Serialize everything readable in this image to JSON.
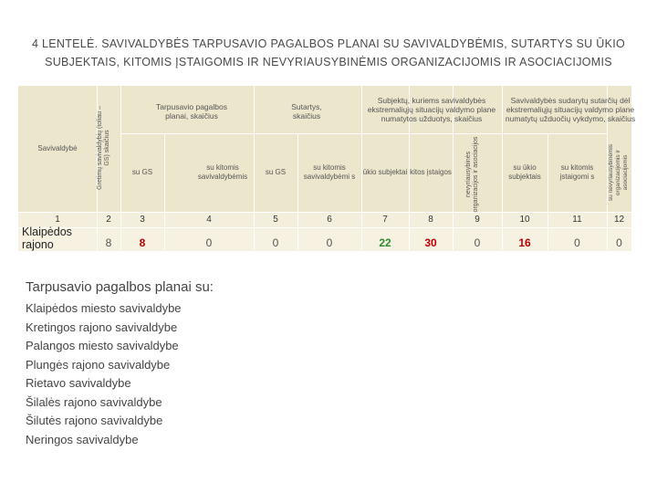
{
  "title_line1": "4 LENTELĖ. SAVIVALDYBĖS TARPUSAVIO PAGALBOS PLANAI SU SAVIVALDYBĖMIS, SUTARTYS SU ŪKIO",
  "title_line2": "SUBJEKTAIS, KITOMIS ĮSTAIGOMIS IR NEVYRIAUSYBINĖMIS ORGANIZACIJOMIS IR ASOCIACIJOMIS",
  "table": {
    "col_savivaldybe": "Savivaldybė",
    "col_gretimu": "Gretimų savivaldybių (toliau – GS) skaičius",
    "grp_tarpusavio": "Tarpusavio pagalbos planai, skaičius",
    "grp_sutartys": "Sutartys, skaičius",
    "grp_subjektu": "Subjektų, kuriems savivaldybės ekstremaliųjų situacijų valdymo plane numatytos užduotys, skaičius",
    "grp_savivaldybes_sutarciu": "Savivaldybės sudarytų sutarčių dėl ekstremaliųjų situacijų valdymo plane numatytų užduočių vykdymo, skaičius",
    "sub_su_gs_1": "su GS",
    "sub_su_kitomis_1": "su kitomis savivaldybėmis",
    "sub_su_gs_2": "su GS",
    "sub_su_kitomis_2": "su kitomis savivaldybėmi s",
    "sub_ukio": "ūkio subjektai",
    "sub_kitos": "kitos įstaigos",
    "sub_nevyr": "nevyriausybinės organizacijos ir asociacijos",
    "sub_su_ukio": "su ūkio subjektais",
    "sub_su_kitomis_istaigom": "su kitomis įstaigomi s",
    "sub_su_nevyr": "su nevyriausybinėmis organizacijomis ir asociacijomis",
    "col_numbers": [
      "1",
      "2",
      "3",
      "4",
      "5",
      "6",
      "7",
      "8",
      "9",
      "10",
      "11",
      "12"
    ],
    "row_name": "Klaipėdos rajono",
    "row_values": [
      "8",
      "8",
      "0",
      "0",
      "0",
      "22",
      "30",
      "0",
      "16",
      "0",
      "0"
    ],
    "colors": {
      "red": "#c00000",
      "green": "#2f8b2f",
      "header_bg": "#ece6cd"
    }
  },
  "plans_heading": "Tarpusavio pagalbos planai su:",
  "municipalities": [
    "Klaipėdos miesto savivaldybe",
    "Kretingos rajono savivaldybe",
    "Palangos miesto savivaldybe",
    "Plungės rajono savivaldybe",
    "Rietavo savivaldybe",
    "Šilalės rajono savivaldybe",
    "Šilutės rajono savivaldybe",
    "Neringos savivaldybe"
  ]
}
